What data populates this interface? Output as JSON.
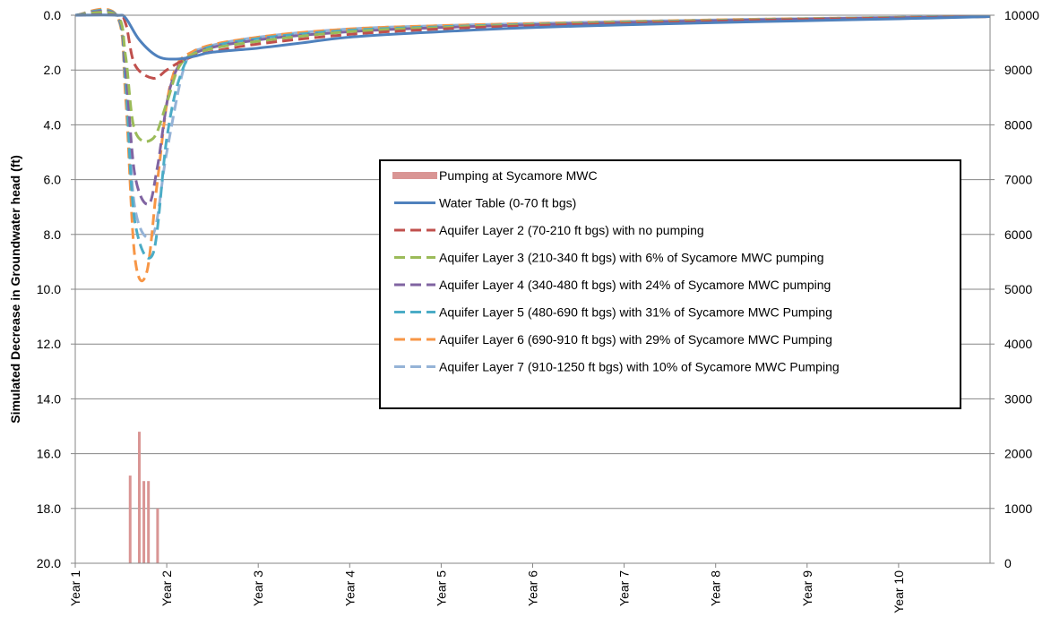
{
  "chart_data": {
    "type": "line",
    "title": "",
    "ylabel": "Simulated Decrease in Groundwater head (ft)",
    "y_axis": {
      "min": 0,
      "max": 20,
      "reversed": true,
      "ticks": [
        "0.0",
        "2.0",
        "4.0",
        "6.0",
        "8.0",
        "10.0",
        "12.0",
        "14.0",
        "16.0",
        "18.0",
        "20.0"
      ]
    },
    "y2_axis": {
      "min": 0,
      "max": 10000,
      "ticks": [
        "0",
        "1000",
        "2000",
        "3000",
        "4000",
        "5000",
        "6000",
        "7000",
        "8000",
        "9000",
        "10000"
      ]
    },
    "x_axis": {
      "min": 1,
      "max": 11,
      "ticks": [
        {
          "label": "Year 1",
          "value": 1
        },
        {
          "label": "Year 2",
          "value": 2
        },
        {
          "label": "Year 3",
          "value": 3
        },
        {
          "label": "Year 4",
          "value": 4
        },
        {
          "label": "Year 5",
          "value": 5
        },
        {
          "label": "Year 6",
          "value": 6
        },
        {
          "label": "Year 7",
          "value": 7
        },
        {
          "label": "Year 8",
          "value": 8
        },
        {
          "label": "Year 9",
          "value": 9
        },
        {
          "label": "Year 10",
          "value": 10
        }
      ]
    },
    "grid": true,
    "legend_position": "center-right",
    "bars": {
      "name": "Pumping at Sycamore MWC",
      "color": "#d99594",
      "x": [
        1.6,
        1.65,
        1.7,
        1.75,
        1.8,
        1.85,
        1.9
      ],
      "values": [
        1600,
        0,
        2400,
        1500,
        1500,
        0,
        1000
      ]
    },
    "series": [
      {
        "name": "Water Table (0-70 ft bgs)",
        "color": "#4f81bd",
        "dash": "solid",
        "x": [
          1,
          1.45,
          1.55,
          1.7,
          1.9,
          2.1,
          2.3,
          2.5,
          3,
          3.5,
          4,
          5,
          6,
          7,
          8,
          9,
          10,
          11
        ],
        "y": [
          0,
          0,
          0.1,
          0.9,
          1.5,
          1.6,
          1.5,
          1.35,
          1.2,
          1.0,
          0.8,
          0.6,
          0.45,
          0.35,
          0.27,
          0.2,
          0.13,
          0.05
        ]
      },
      {
        "name": "Aquifer Layer 2 (70-210 ft bgs) with no pumping",
        "color": "#c0504d",
        "dash": "dashed",
        "x": [
          1,
          1.45,
          1.55,
          1.65,
          1.85,
          2.0,
          2.15,
          2.4,
          3,
          4,
          5,
          6,
          7,
          8,
          9,
          10,
          11
        ],
        "y": [
          0,
          0,
          0.3,
          1.8,
          2.3,
          2.0,
          1.7,
          1.4,
          1.05,
          0.7,
          0.5,
          0.38,
          0.3,
          0.22,
          0.15,
          0.1,
          0.05
        ]
      },
      {
        "name": "Aquifer Layer 3 (210-340 ft bgs) with 6% of Sycamore MWC pumping",
        "color": "#9bbb59",
        "dash": "dashed",
        "x": [
          1,
          1.45,
          1.55,
          1.65,
          1.85,
          2.0,
          2.15,
          2.4,
          3,
          4,
          5,
          6,
          7,
          8,
          9,
          10,
          11
        ],
        "y": [
          0,
          0,
          1.5,
          4.2,
          4.5,
          3.2,
          1.8,
          1.3,
          0.95,
          0.6,
          0.45,
          0.35,
          0.27,
          0.2,
          0.14,
          0.09,
          0.05
        ]
      },
      {
        "name": "Aquifer Layer 4 (340-480 ft bgs) with 24% of Sycamore MWC pumping",
        "color": "#8064a2",
        "dash": "dashed",
        "x": [
          1,
          1.45,
          1.55,
          1.65,
          1.8,
          1.9,
          2.05,
          2.3,
          3,
          4,
          5,
          6,
          7,
          8,
          9,
          10,
          11
        ],
        "y": [
          0,
          0,
          2.0,
          5.8,
          6.9,
          5.5,
          2.5,
          1.4,
          0.9,
          0.6,
          0.45,
          0.35,
          0.27,
          0.2,
          0.14,
          0.09,
          0.05
        ]
      },
      {
        "name": "Aquifer Layer 5 (480-690 ft bgs) with 31% of Sycamore MWC Pumping",
        "color": "#4bacc6",
        "dash": "dashed",
        "x": [
          1,
          1.45,
          1.55,
          1.65,
          1.85,
          2.0,
          2.15,
          2.35,
          3,
          4,
          5,
          6,
          7,
          8,
          9,
          10,
          11
        ],
        "y": [
          0,
          0,
          2.5,
          7.5,
          8.7,
          4.5,
          2.2,
          1.3,
          0.85,
          0.55,
          0.42,
          0.33,
          0.25,
          0.19,
          0.13,
          0.08,
          0.05
        ]
      },
      {
        "name": "Aquifer Layer 6 (690-910 ft bgs) with 29% of Sycamore MWC Pumping",
        "color": "#f79646",
        "dash": "dashed",
        "x": [
          1,
          1.45,
          1.55,
          1.65,
          1.78,
          1.9,
          2.05,
          2.3,
          3,
          4,
          5,
          6,
          7,
          8,
          9,
          10,
          11
        ],
        "y": [
          0,
          0,
          3.0,
          8.8,
          9.4,
          6.0,
          2.4,
          1.3,
          0.8,
          0.5,
          0.38,
          0.3,
          0.23,
          0.17,
          0.12,
          0.08,
          0.05
        ]
      },
      {
        "name": "Aquifer Layer 7 (910-1250 ft bgs) with 10% of Sycamore MWC Pumping",
        "color": "#95b3d7",
        "dash": "dashed",
        "x": [
          1,
          1.45,
          1.55,
          1.65,
          1.85,
          2.0,
          2.2,
          2.4,
          3,
          4,
          5,
          6,
          7,
          8,
          9,
          10,
          11
        ],
        "y": [
          0,
          0,
          2.0,
          7.0,
          8.0,
          5.0,
          1.8,
          1.2,
          0.8,
          0.5,
          0.38,
          0.3,
          0.23,
          0.17,
          0.12,
          0.08,
          0.05
        ]
      }
    ]
  }
}
